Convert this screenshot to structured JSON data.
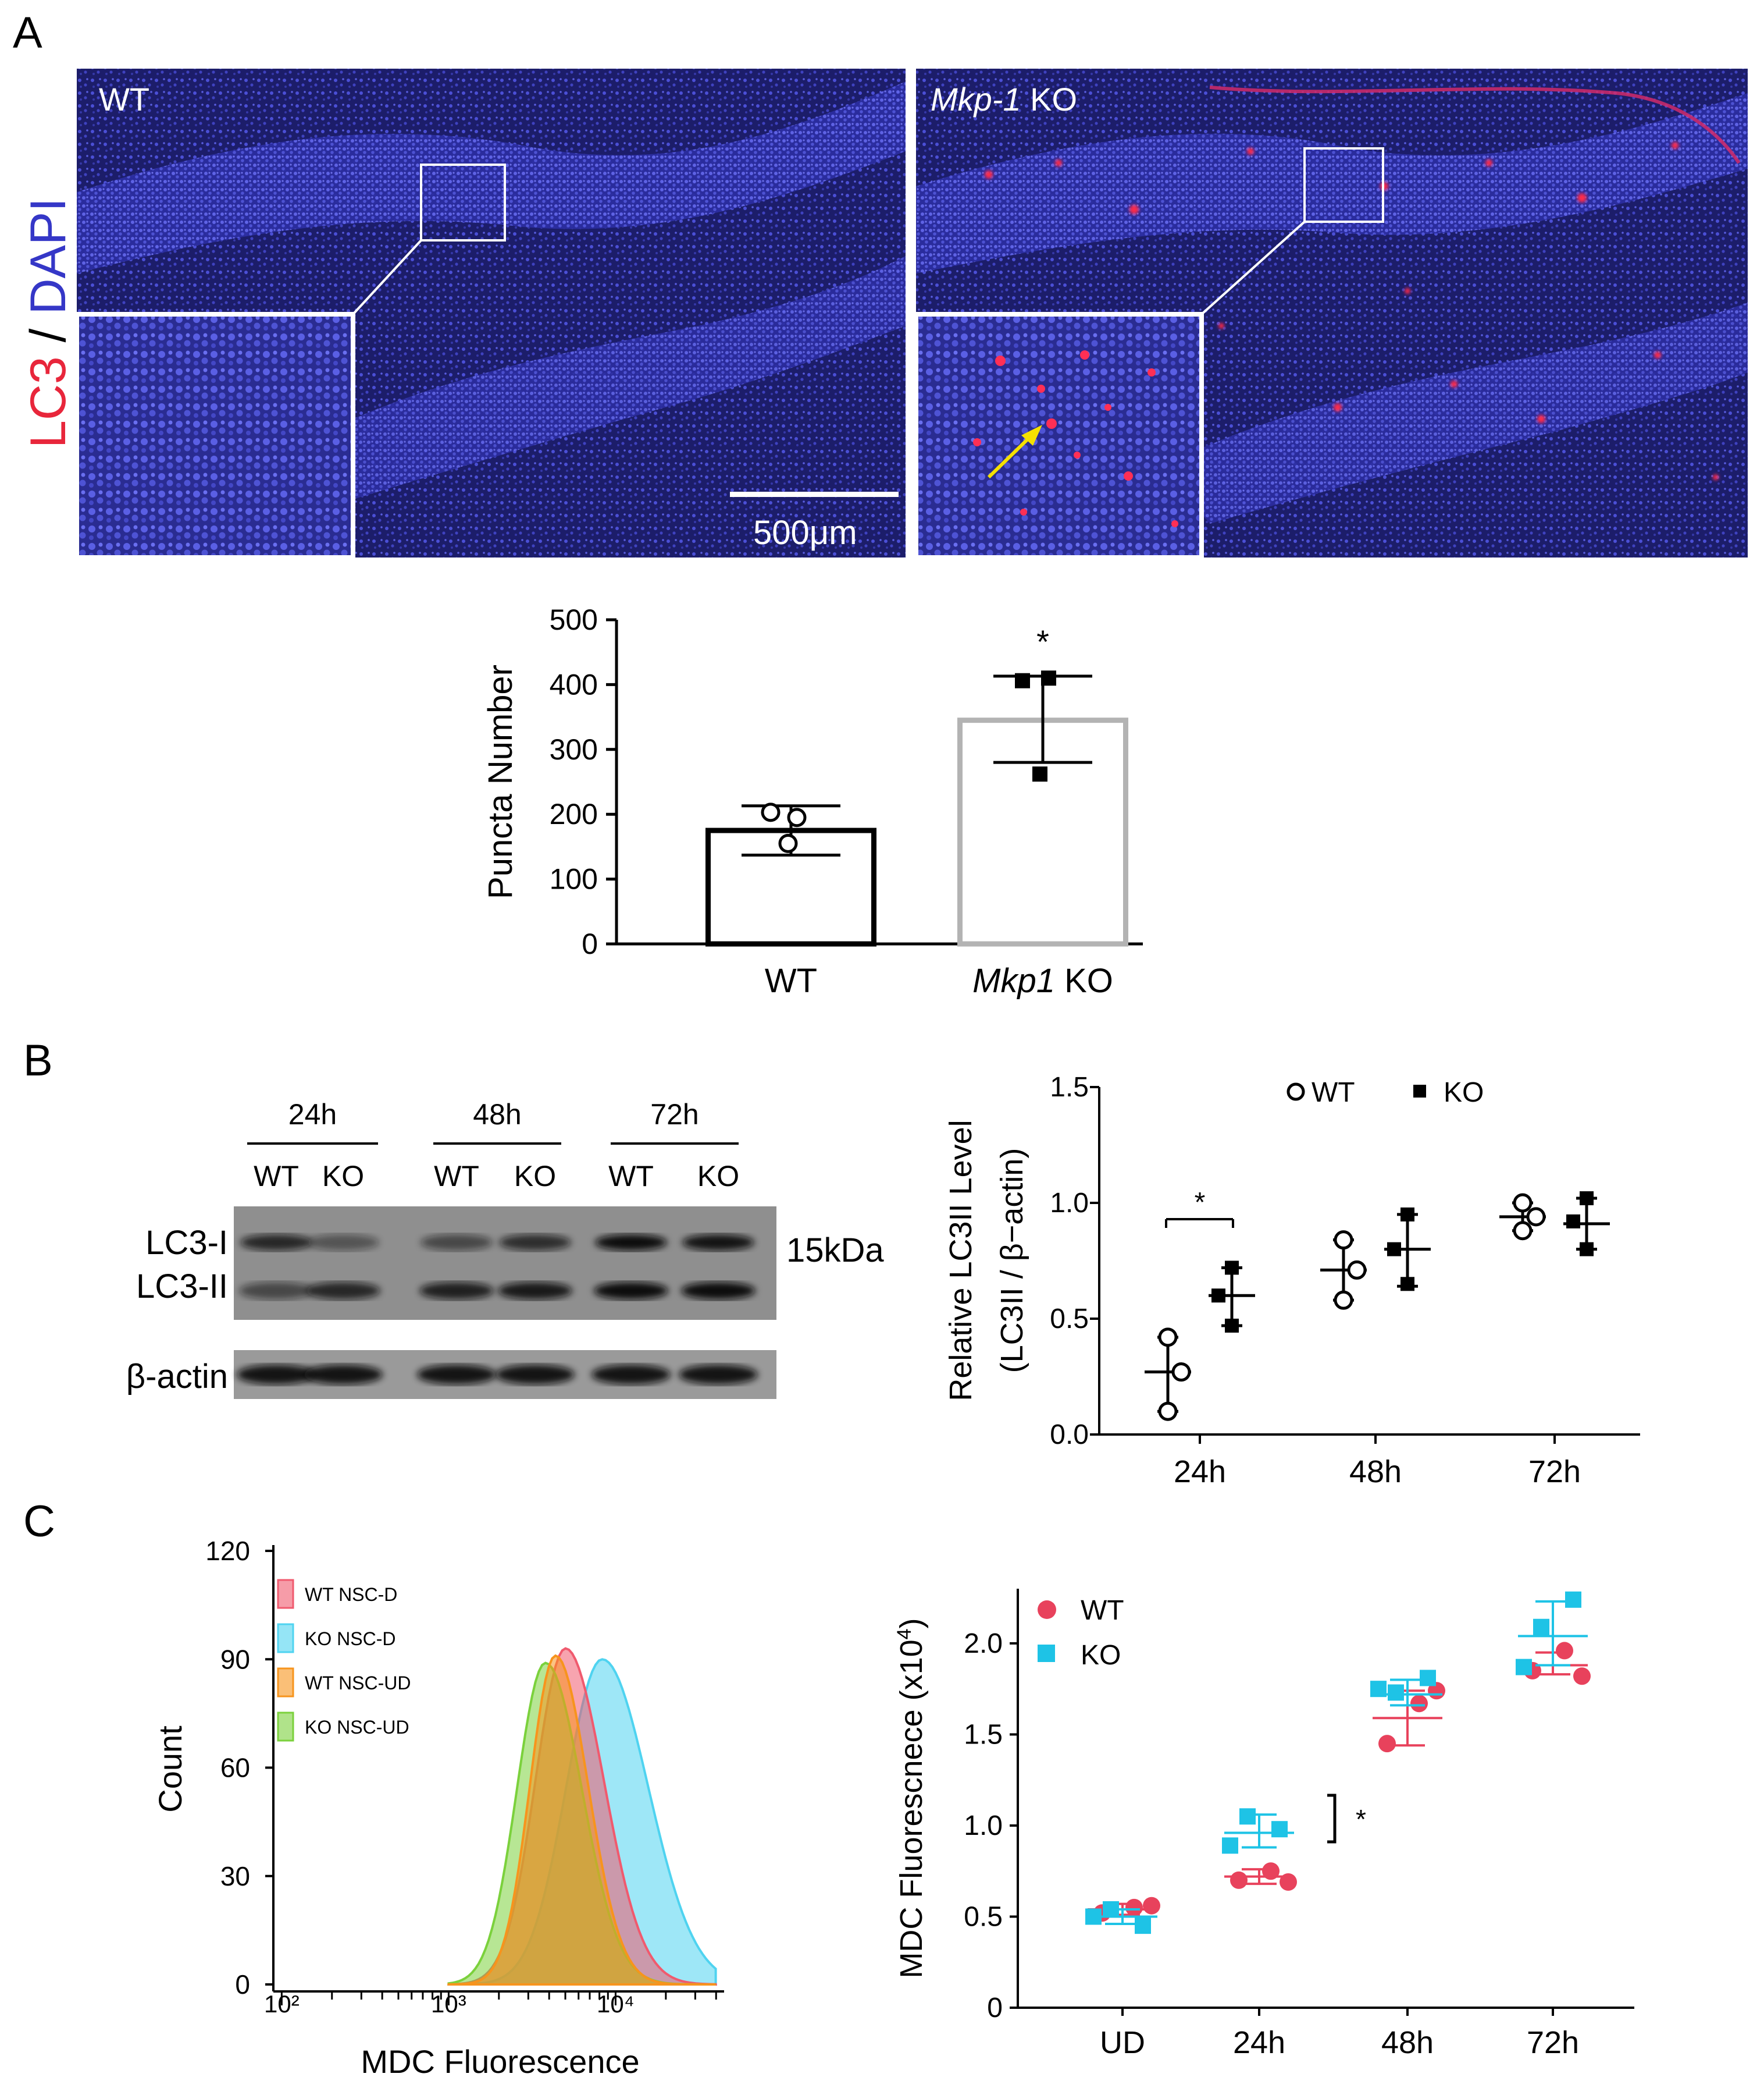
{
  "panel_labels": {
    "a": "A",
    "b": "B",
    "c": "C"
  },
  "panel_a": {
    "side_label": {
      "lc3": "LC3",
      "slash": " / ",
      "dapi": "DAPI"
    },
    "wt_label": "WT",
    "ko_label_italic": "Mkp-1",
    "ko_label_rest": " KO",
    "scale_bar": "500μm"
  },
  "chart_data": [
    {
      "id": "puncta",
      "type": "bar",
      "categories": [
        "WT",
        "Mkp1 KO"
      ],
      "category_labels": [
        {
          "italic": "",
          "text": "WT"
        },
        {
          "italic": "Mkp1",
          "text": " KO"
        }
      ],
      "values": [
        175,
        345
      ],
      "errors": [
        {
          "low": 137,
          "high": 213
        },
        {
          "low": 280,
          "high": 413
        }
      ],
      "points": [
        [
          203,
          195,
          155
        ],
        [
          406,
          410,
          262
        ]
      ],
      "ylabel": "Puncta Number",
      "ylim": [
        0,
        500
      ],
      "yticks": [
        0,
        100,
        200,
        300,
        400,
        500
      ],
      "annotation": "*",
      "colors": {
        "WT": "#000000",
        "KO": "#b3b3b3"
      }
    },
    {
      "id": "lc3ii",
      "type": "scatter",
      "categories": [
        "24h",
        "48h",
        "72h"
      ],
      "ylabel_line1": "Relative LC3II Level",
      "ylabel_line2": "(LC3II / β−actin)",
      "ylim": [
        0,
        1.5
      ],
      "yticks": [
        "0.0",
        "0.5",
        "1.0",
        "1.5"
      ],
      "legend": [
        "WT",
        "KO"
      ],
      "annotation": "*",
      "series": [
        {
          "name": "WT",
          "means": [
            0.27,
            0.71,
            0.94
          ],
          "low": [
            0.1,
            0.58,
            0.88
          ],
          "high": [
            0.42,
            0.84,
            1.0
          ],
          "points": [
            [
              0.42,
              0.27,
              0.1
            ],
            [
              0.84,
              0.71,
              0.58
            ],
            [
              1.0,
              0.94,
              0.88
            ]
          ]
        },
        {
          "name": "KO",
          "means": [
            0.6,
            0.8,
            0.91
          ],
          "low": [
            0.47,
            0.64,
            0.8
          ],
          "high": [
            0.72,
            0.95,
            1.02
          ],
          "points": [
            [
              0.72,
              0.6,
              0.47
            ],
            [
              0.95,
              0.8,
              0.65
            ],
            [
              1.02,
              0.92,
              0.8
            ]
          ]
        }
      ]
    },
    {
      "id": "histogram",
      "type": "area",
      "xlabel": "MDC Fluorescence",
      "ylabel": "Count",
      "ylim": [
        0,
        120
      ],
      "yticks": [
        0,
        30,
        60,
        90,
        120
      ],
      "xticks": [
        "10²",
        "10³",
        "10⁴"
      ],
      "series": [
        {
          "name": "WT NSC-D",
          "color": "#f05a6e",
          "peak_log10": 3.7,
          "peak": 93,
          "width": 0.2
        },
        {
          "name": "KO NSC-D",
          "color": "#4fd3f0",
          "peak_log10": 3.92,
          "peak": 90,
          "width": 0.24
        },
        {
          "name": "WT NSC-UD",
          "color": "#f7941d",
          "peak_log10": 3.64,
          "peak": 91,
          "width": 0.17
        },
        {
          "name": "KO NSC-UD",
          "color": "#7bd13c",
          "peak_log10": 3.58,
          "peak": 89,
          "width": 0.19
        }
      ]
    },
    {
      "id": "mdc",
      "type": "scatter",
      "categories": [
        "UD",
        "24h",
        "48h",
        "72h"
      ],
      "ylabel": "MDC Fluorescnece (x10",
      "ylabel_sup": "4",
      "ylabel_close": ")",
      "ylim": [
        0,
        2.3
      ],
      "yticks": [
        "0",
        "0.5",
        "1.0",
        "1.5",
        "2.0"
      ],
      "legend": [
        "WT",
        "KO"
      ],
      "annotation": "*",
      "series": [
        {
          "name": "WT",
          "color": "#e8425c",
          "means": [
            0.54,
            0.72,
            1.59,
            1.88
          ],
          "low": [
            0.51,
            0.68,
            1.44,
            1.83
          ],
          "high": [
            0.57,
            0.76,
            1.74,
            1.95
          ],
          "points": [
            [
              0.52,
              0.55,
              0.56
            ],
            [
              0.7,
              0.75,
              0.69
            ],
            [
              1.45,
              1.67,
              1.74
            ],
            [
              1.85,
              1.96,
              1.82
            ]
          ]
        },
        {
          "name": "KO",
          "color": "#1ec3e6",
          "means": [
            0.5,
            0.96,
            1.72,
            2.04
          ],
          "low": [
            0.46,
            0.88,
            1.66,
            1.88
          ],
          "high": [
            0.54,
            1.06,
            1.8,
            2.23
          ],
          "points": [
            [
              0.45,
              0.54,
              0.5
            ],
            [
              0.98,
              1.05,
              0.89
            ],
            [
              1.81,
              1.73,
              1.75
            ],
            [
              2.24,
              2.09,
              1.87
            ]
          ]
        }
      ]
    }
  ],
  "panel_b": {
    "times": [
      "24h",
      "48h",
      "72h"
    ],
    "lanes": [
      "WT",
      "KO",
      "WT",
      "KO",
      "WT",
      "KO"
    ],
    "band_labels": [
      "LC3-I",
      "LC3-II",
      "β-actin"
    ],
    "size_marker": "15kDa"
  }
}
